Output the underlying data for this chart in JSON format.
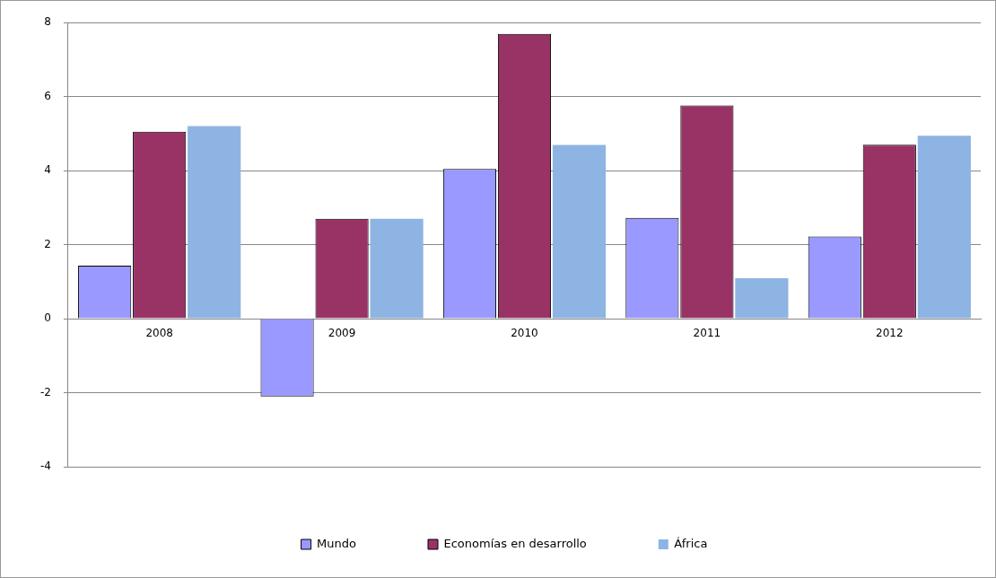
{
  "chart_data": {
    "type": "bar",
    "categories": [
      "2008",
      "2009",
      "2010",
      "2011",
      "2012"
    ],
    "series": [
      {
        "name": "Mundo",
        "color": "#9999ff",
        "values": [
          1.43,
          -2.1,
          4.04,
          2.72,
          2.22
        ]
      },
      {
        "name": "Economías en desarrollo",
        "color": "#993366",
        "values": [
          5.05,
          2.7,
          7.69,
          5.76,
          4.7
        ]
      },
      {
        "name": "África",
        "color": "#8eb4e3",
        "values": [
          5.2,
          2.7,
          4.69,
          1.09,
          4.94
        ]
      }
    ],
    "ylim": [
      -4,
      8
    ],
    "yticks": [
      -4,
      -2,
      0,
      2,
      4,
      6,
      8
    ],
    "grid": "y",
    "legend": "bottom"
  }
}
